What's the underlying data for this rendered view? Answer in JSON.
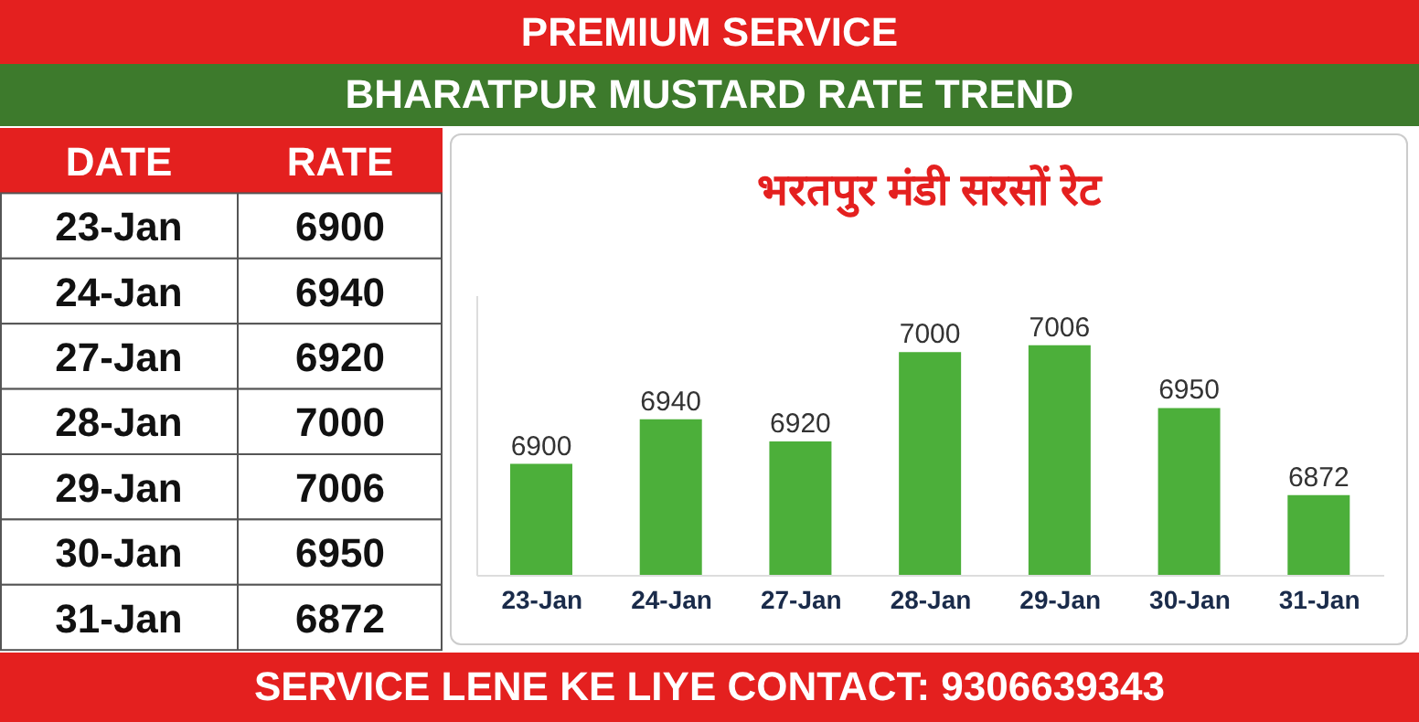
{
  "chart_data": [
    {
      "type": "other",
      "annotations": [
        "DATE",
        "RATE"
      ],
      "categories": [
        "23-Jan",
        "24-Jan",
        "27-Jan",
        "28-Jan",
        "29-Jan",
        "30-Jan",
        "31-Jan"
      ],
      "value_labels": [
        "6900",
        "6940",
        "6920",
        "7000",
        "7006",
        "6950",
        "6872"
      ]
    },
    {
      "type": "bar",
      "title": "BHARATPUR MUSTARD RATE TREND",
      "subtitle": "भरतपुर मंडी सरसों रेट",
      "annotations": [
        "PREMIUM SERVICE",
        "SERVICE LENE KE LIYE CONTACT: 9306639343"
      ],
      "categories": [
        "23-Jan",
        "24-Jan",
        "27-Jan",
        "28-Jan",
        "29-Jan",
        "30-Jan",
        "31-Jan"
      ],
      "values": [
        6900,
        6940,
        6920,
        7000,
        7006,
        6950,
        6872
      ],
      "color": "#4caf3a",
      "ylim": [
        6800,
        7050
      ],
      "data_labels": true,
      "tick_labels": "x"
    }
  ]
}
